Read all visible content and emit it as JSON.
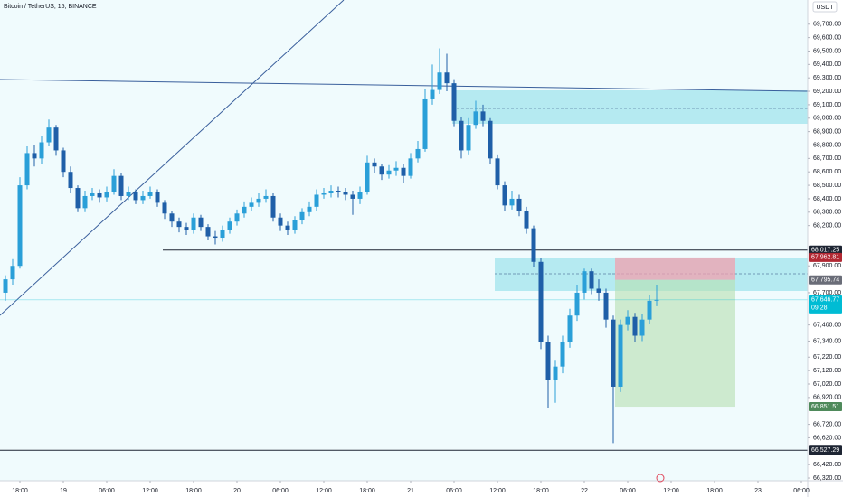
{
  "chart_data": {
    "type": "candlestick",
    "title": "Bitcoin / TetherUS, 15, BINANCE",
    "currency": "USDT",
    "up_color": "#2a9fd8",
    "down_color": "#1f5fa8",
    "x": [
      -2,
      -1,
      0,
      1,
      2,
      3,
      4,
      5,
      6,
      7,
      8,
      9,
      10,
      11,
      12,
      13,
      14,
      15,
      16,
      17,
      18,
      19,
      20,
      21,
      22,
      23,
      24,
      25,
      26,
      27,
      28,
      29,
      30,
      31,
      32,
      33,
      34,
      35,
      36,
      37,
      38,
      39,
      40,
      41,
      42,
      43,
      44,
      45,
      46,
      47,
      48,
      49,
      50,
      51,
      52,
      53,
      54,
      55,
      56,
      57,
      58,
      59,
      60,
      61,
      62,
      63,
      64,
      65,
      66,
      67,
      68,
      69,
      70,
      71,
      72,
      73,
      74,
      75,
      76,
      77,
      78,
      79,
      80,
      81,
      82,
      83,
      84,
      85,
      86,
      87,
      88
    ],
    "open": [
      67700,
      67800,
      67900,
      68500,
      68740,
      68700,
      68820,
      68930,
      68760,
      68600,
      68480,
      68330,
      68420,
      68440,
      68410,
      68450,
      68570,
      68420,
      68450,
      68390,
      68420,
      68450,
      68370,
      68290,
      68230,
      68190,
      68170,
      68260,
      68190,
      68120,
      68110,
      68170,
      68230,
      68290,
      68340,
      68370,
      68400,
      68420,
      68260,
      68200,
      68170,
      68240,
      68300,
      68340,
      68430,
      68440,
      68460,
      68450,
      68430,
      68400,
      68450,
      68670,
      68640,
      68580,
      68610,
      68630,
      68570,
      68700,
      68770,
      69140,
      69210,
      69340,
      69260,
      68980,
      68760,
      68950,
      69050,
      68980,
      68700,
      68500,
      68350,
      68400,
      68310,
      68180,
      67930,
      67330,
      67050,
      67150,
      67330,
      67530,
      67700,
      67860,
      67730,
      67700,
      67500,
      67000,
      67460,
      67520,
      67380,
      67500,
      67640
    ],
    "high": [
      67830,
      67950,
      68560,
      68790,
      68800,
      68870,
      68990,
      68950,
      68780,
      68640,
      68500,
      68460,
      68480,
      68470,
      68490,
      68620,
      68590,
      68490,
      68470,
      68460,
      68490,
      68470,
      68390,
      68310,
      68260,
      68220,
      68290,
      68280,
      68210,
      68160,
      68200,
      68260,
      68320,
      68380,
      68410,
      68440,
      68470,
      68440,
      68290,
      68230,
      68270,
      68330,
      68380,
      68470,
      68480,
      68500,
      68490,
      68480,
      68460,
      68490,
      68720,
      68700,
      68660,
      68650,
      68680,
      68660,
      68740,
      68830,
      69220,
      69400,
      69520,
      69480,
      69290,
      69010,
      69000,
      69130,
      69100,
      69000,
      68730,
      68530,
      68460,
      68430,
      68340,
      68200,
      67960,
      67380,
      67200,
      67380,
      67580,
      67760,
      67880,
      67880,
      67800,
      67730,
      67530,
      67500,
      67570,
      67550,
      67540,
      67680,
      67760
    ],
    "low": [
      67640,
      67760,
      67880,
      68470,
      68640,
      68660,
      68790,
      68720,
      68560,
      68440,
      68300,
      68300,
      68390,
      68370,
      68380,
      68430,
      68390,
      68390,
      68360,
      68360,
      68400,
      68340,
      68250,
      68190,
      68150,
      68130,
      68140,
      68160,
      68090,
      68060,
      68080,
      68140,
      68200,
      68260,
      68310,
      68340,
      68370,
      68230,
      68160,
      68130,
      68140,
      68210,
      68270,
      68310,
      68400,
      68410,
      68410,
      68390,
      68280,
      68360,
      68430,
      68590,
      68540,
      68550,
      68570,
      68520,
      68550,
      68670,
      68750,
      69100,
      69180,
      69200,
      68940,
      68700,
      68730,
      68920,
      68940,
      68660,
      68470,
      68310,
      68320,
      68270,
      68140,
      67890,
      67280,
      66840,
      66880,
      67100,
      67290,
      67490,
      67650,
      67690,
      67640,
      67440,
      66580,
      66960,
      67420,
      67330,
      67340,
      67470,
      67600
    ],
    "close": [
      67800,
      67900,
      68500,
      68740,
      68700,
      68820,
      68930,
      68760,
      68600,
      68480,
      68330,
      68420,
      68440,
      68410,
      68450,
      68570,
      68420,
      68450,
      68390,
      68420,
      68450,
      68370,
      68290,
      68230,
      68190,
      68170,
      68260,
      68190,
      68120,
      68110,
      68170,
      68230,
      68290,
      68340,
      68370,
      68400,
      68420,
      68260,
      68200,
      68170,
      68240,
      68300,
      68340,
      68430,
      68440,
      68460,
      68450,
      68430,
      68400,
      68450,
      68670,
      68640,
      68580,
      68610,
      68630,
      68570,
      68700,
      68770,
      69140,
      69210,
      69340,
      69260,
      68980,
      68760,
      68950,
      69050,
      68980,
      68700,
      68500,
      68350,
      68400,
      68310,
      68180,
      67930,
      67330,
      67050,
      67150,
      67330,
      67530,
      67700,
      67860,
      67730,
      67700,
      67500,
      67000,
      67460,
      67520,
      67380,
      67500,
      67640,
      67647
    ],
    "xlim": [
      -2.75,
      108.875
    ],
    "ylim": [
      66300,
      69880
    ],
    "xticks": [
      {
        "value": 0,
        "label": "18:00"
      },
      {
        "value": 6,
        "label": "19"
      },
      {
        "value": 12,
        "label": "06:00"
      },
      {
        "value": 18,
        "label": "12:00"
      },
      {
        "value": 24,
        "label": "18:00"
      },
      {
        "value": 30,
        "label": "20"
      },
      {
        "value": 36,
        "label": "06:00"
      },
      {
        "value": 42,
        "label": "12:00"
      },
      {
        "value": 48,
        "label": "18:00"
      },
      {
        "value": 54,
        "label": "21"
      },
      {
        "value": 60,
        "label": "06:00"
      },
      {
        "value": 66,
        "label": "12:00"
      },
      {
        "value": 72,
        "label": "18:00"
      },
      {
        "value": 78,
        "label": "22"
      },
      {
        "value": 84,
        "label": "06:00"
      },
      {
        "value": 90,
        "label": "12:00"
      },
      {
        "value": 96,
        "label": "18:00"
      },
      {
        "value": 102,
        "label": "23"
      },
      {
        "value": 108,
        "label": "06:00"
      }
    ],
    "yticks": [
      {
        "value": 69700,
        "label": "69,700.00"
      },
      {
        "value": 69600,
        "label": "69,600.00"
      },
      {
        "value": 69500,
        "label": "69,500.00"
      },
      {
        "value": 69400,
        "label": "69,400.00"
      },
      {
        "value": 69300,
        "label": "69,300.00"
      },
      {
        "value": 69200,
        "label": "69,200.00"
      },
      {
        "value": 69100,
        "label": "69,100.00"
      },
      {
        "value": 69000,
        "label": "69,000.00"
      },
      {
        "value": 68900,
        "label": "68,900.00"
      },
      {
        "value": 68800,
        "label": "68,800.00"
      },
      {
        "value": 68700,
        "label": "68,700.00"
      },
      {
        "value": 68600,
        "label": "68,600.00"
      },
      {
        "value": 68500,
        "label": "68,500.00"
      },
      {
        "value": 68400,
        "label": "68,400.00"
      },
      {
        "value": 68300,
        "label": "68,300.00"
      },
      {
        "value": 68200,
        "label": "68,200.00"
      },
      {
        "value": 67900,
        "label": "67,900.00"
      },
      {
        "value": 67700,
        "label": "67,700.00"
      },
      {
        "value": 67460,
        "label": "67,460.00"
      },
      {
        "value": 67340,
        "label": "67,340.00"
      },
      {
        "value": 67220,
        "label": "67,220.00"
      },
      {
        "value": 67120,
        "label": "67,120.00"
      },
      {
        "value": 67020,
        "label": "67,020.00"
      },
      {
        "value": 66920,
        "label": "66,920.00"
      },
      {
        "value": 66720,
        "label": "66,720.00"
      },
      {
        "value": 66620,
        "label": "66,620.00"
      },
      {
        "value": 66420,
        "label": "66,420.00"
      },
      {
        "value": 66320,
        "label": "66,320.00"
      }
    ],
    "price_tags": [
      {
        "value": 68017.25,
        "label": "68,017.25",
        "color": "#1e2533"
      },
      {
        "value": 67962.81,
        "label": "67,962.81",
        "color": "#b22833"
      },
      {
        "value": 67795.74,
        "label": "67,795.74",
        "color": "#6a6d78"
      },
      {
        "value": 67646.77,
        "label": "67,646.77",
        "color": "#00bcd4",
        "countdown": "09:28"
      },
      {
        "value": 66851.51,
        "label": "66,851.51",
        "color": "#4f8a5b"
      },
      {
        "value": 66527.29,
        "label": "66,527.29",
        "color": "#1e2533"
      }
    ]
  }
}
